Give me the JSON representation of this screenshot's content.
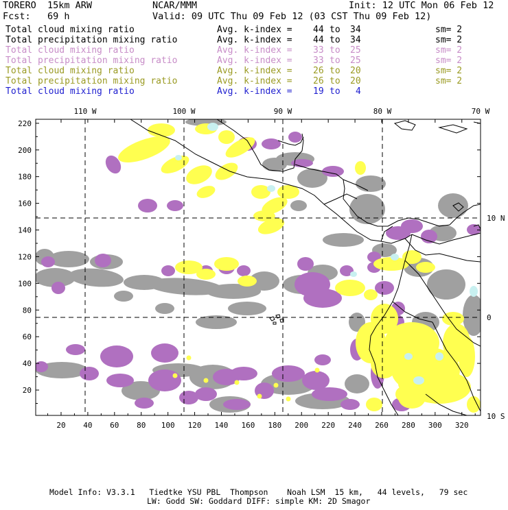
{
  "header": {
    "model": "TORERO  15km ARW",
    "org": "NCAR/MMM",
    "init": "Init: 12 UTC Mon 06 Feb 12",
    "fcst": "Fcst:   69 h",
    "valid": "Valid: 09 UTC Thu 09 Feb 12 (03 CST Thu 09 Feb 12)"
  },
  "legend": [
    {
      "field": "Total cloud mixing ratio",
      "label": "Avg. k-index =",
      "from": "44",
      "to_word": "to",
      "to": "34",
      "sm": "sm= 2",
      "color": "#000000"
    },
    {
      "field": "Total precipitation mixing ratio",
      "label": "Avg. k-index =",
      "from": "44",
      "to_word": "to",
      "to": "34",
      "sm": "sm= 2",
      "color": "#000000"
    },
    {
      "field": "Total cloud mixing ratio",
      "label": "Avg. k-index =",
      "from": "33",
      "to_word": "to",
      "to": "25",
      "sm": "sm= 2",
      "color": "#c78cc7"
    },
    {
      "field": "Total precipitation mixing ratio",
      "label": "Avg. k-index =",
      "from": "33",
      "to_word": "to",
      "to": "25",
      "sm": "sm= 2",
      "color": "#c78cc7"
    },
    {
      "field": "Total cloud mixing ratio",
      "label": "Avg. k-index =",
      "from": "26",
      "to_word": "to",
      "to": "20",
      "sm": "sm= 2",
      "color": "#9a9a22"
    },
    {
      "field": "Total precipitation mixing ratio",
      "label": "Avg. k-index =",
      "from": "26",
      "to_word": "to",
      "to": "20",
      "sm": "sm= 2",
      "color": "#9a9a22"
    },
    {
      "field": "Total cloud mixing ratio",
      "label": "Avg. k-index =",
      "from": "19",
      "to_word": "to",
      "to": "4",
      "sm": "",
      "color": "#2020d0"
    }
  ],
  "axes": {
    "top_lon_labels": [
      "110 W",
      "100 W",
      "90 W",
      "80 W",
      "70 W"
    ],
    "right_lat_labels": [
      "10 N",
      "0",
      "10 S"
    ],
    "left_ticks": [
      "20",
      "40",
      "60",
      "80",
      "100",
      "120",
      "140",
      "160",
      "180",
      "200",
      "220"
    ],
    "bottom_ticks": [
      "20",
      "40",
      "60",
      "80",
      "100",
      "120",
      "140",
      "160",
      "180",
      "200",
      "220",
      "240",
      "260",
      "280",
      "300",
      "320"
    ]
  },
  "colors": {
    "gray": "#a0a0a0",
    "purple": "#b070c0",
    "yellow": "#ffff50",
    "cyan": "#c8f0f0"
  },
  "footer": {
    "line1": "Model Info: V3.3.1   Tiedtke YSU PBL  Thompson    Noah LSM  15 km,   44 levels,   79 sec",
    "line2": "LW: Godd SW: Goddard DIFF: simple KM: 2D Smagor"
  }
}
